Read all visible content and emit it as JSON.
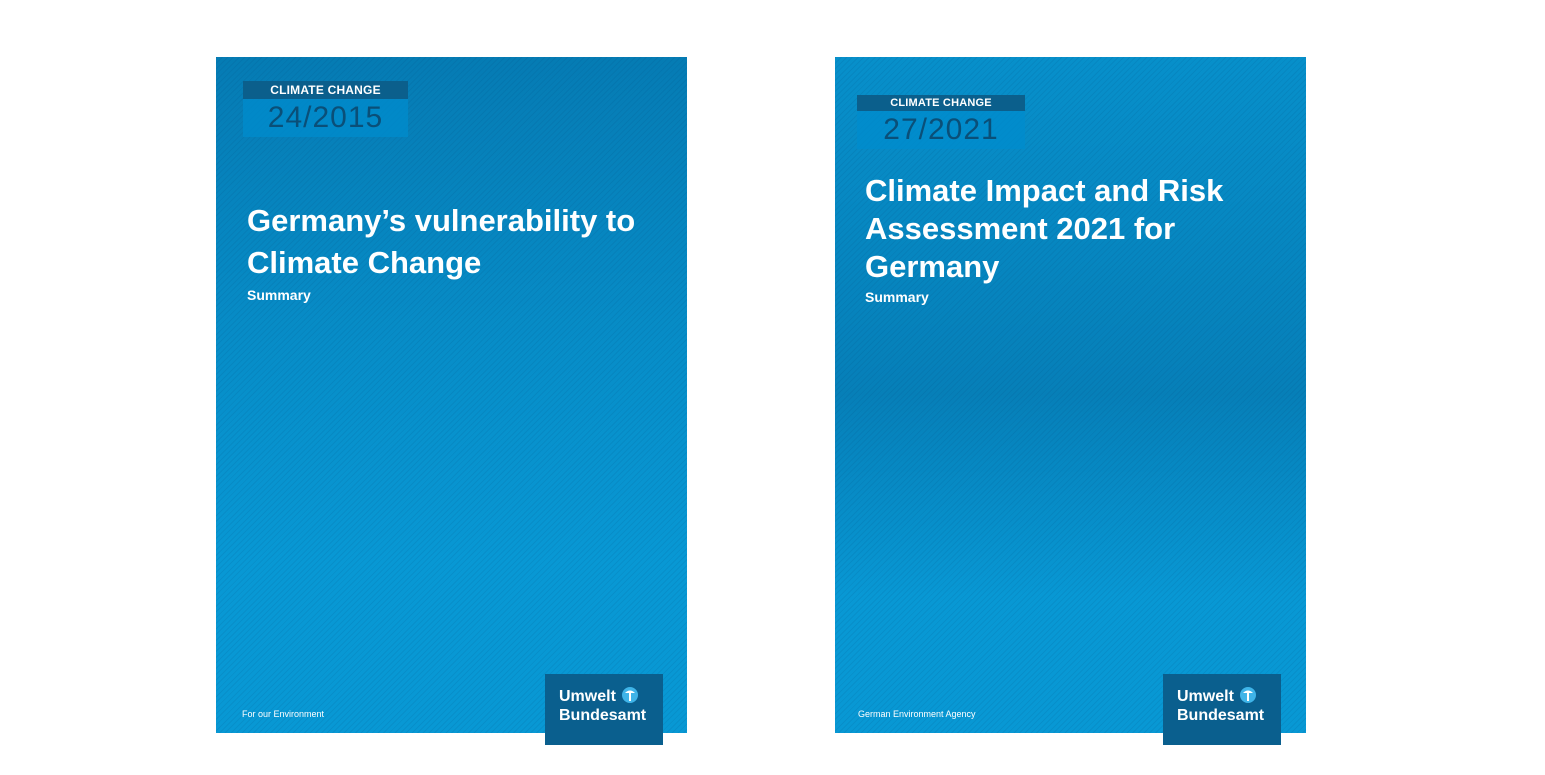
{
  "covers": [
    {
      "series_label": "CLIMATE CHANGE",
      "series_number": "24/2015",
      "title": "Germany’s vulnerability to Climate Change",
      "subtitle": "Summary",
      "footer": "For our Environment",
      "logo_line1": "Umwelt",
      "logo_line2": "Bundesamt",
      "logo_icon": "uba-logo-icon"
    },
    {
      "series_label": "CLIMATE CHANGE",
      "series_number": "27/2021",
      "title": "Climate Impact and Risk Assessment 2021 for Germany",
      "subtitle": "Summary",
      "footer": "German Environment Agency",
      "logo_line1": "Umwelt",
      "logo_line2": "Bundesamt",
      "logo_icon": "uba-logo-icon"
    }
  ],
  "colors": {
    "cover_blue": "#0898d4",
    "label_dark_blue": "#0b5f8c",
    "logo_blue": "#0a5f8e",
    "number_text": "#0a4f78"
  }
}
